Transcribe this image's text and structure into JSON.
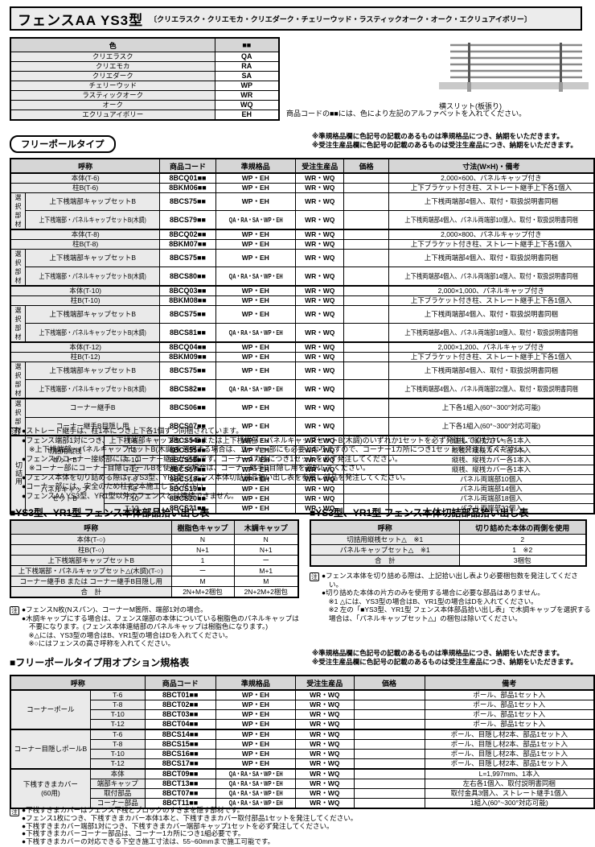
{
  "note_mark": "注",
  "colors": {
    "border": "#000000",
    "header_bg": "#d6d6d6",
    "label_bg": "#eaeaea",
    "title_bg": "#ececec",
    "ground": "#c9c9c9"
  },
  "page": {
    "title": "フェンスAA YS3型",
    "subtitle": "〔クリエラスク・クリエモカ・クリエダーク・チェリーウッド・ラスティックオーク・オーク・エクリュアイボリー〕",
    "code_note": "商品コードの■■には、色により左記のアルファベットを入れてください。",
    "diagram_caption": "横スリット(板張り)"
  },
  "color_table": {
    "header": [
      "色",
      "■■"
    ],
    "rows": [
      [
        "クリエラスク",
        "QA"
      ],
      [
        "クリエモカ",
        "RA"
      ],
      [
        "クリエダーク",
        "SA"
      ],
      [
        "チェリーウッド",
        "WP"
      ],
      [
        "ラスティックオーク",
        "WR"
      ],
      [
        "オーク",
        "WQ"
      ],
      [
        "エクリュアイボリー",
        "EH"
      ]
    ]
  },
  "notices": [
    "※準規格品欄に色記号の記載のあるものは準規格品につき、納期をいただきます。",
    "※受注生産品欄に色記号の記載のあるものは受注生産品につき、納期をいただきます。"
  ],
  "free_pole": {
    "badge": "フリーポールタイプ",
    "headers": [
      "呼称",
      "商品コード",
      "準規格品",
      "受注生産品",
      "価格",
      "寸法(W×H)・備考"
    ],
    "side_label": "選択部材",
    "cut_label": "切詰用",
    "rows": [
      {
        "k": "p",
        "top": true,
        "name": "本体(T-6)",
        "code": "8BCQ01■■",
        "semi": "WP・EH",
        "order": "WR・WQ",
        "price": "",
        "note": "2,000×600、パネルキャップ付き"
      },
      {
        "k": "p",
        "name": "柱B(T-6)",
        "code": "8BKM06■■",
        "semi": "WP・EH",
        "order": "WR・WQ",
        "price": "",
        "note": "上下ブラケット付き柱、ストレート継手上下各1個入"
      },
      {
        "k": "s",
        "first": true,
        "name": "上下桟端部キャップセットB",
        "code": "8BCS75■■",
        "semi": "WP・EH",
        "order": "WR・WQ",
        "price": "",
        "note": "上下桟両端部4個入、取付・取扱説明書同梱"
      },
      {
        "k": "s",
        "name": "上下桟端部・パネルキャップセットB(木調)",
        "code": "8BCS79■■",
        "semi": "QA・RA・SA・WP・EH",
        "order": "WR・WQ",
        "price": "",
        "note": "上下桟両端部4個入、パネル両端部10個入、取付・取扱説明書同梱"
      },
      {
        "k": "p",
        "top": true,
        "name": "本体(T-8)",
        "code": "8BCQ02■■",
        "semi": "WP・EH",
        "order": "WR・WQ",
        "price": "",
        "note": "2,000×800、パネルキャップ付き"
      },
      {
        "k": "p",
        "name": "柱B(T-8)",
        "code": "8BKM07■■",
        "semi": "WP・EH",
        "order": "WR・WQ",
        "price": "",
        "note": "上下ブラケット付き柱、ストレート継手上下各1個入"
      },
      {
        "k": "s",
        "first": true,
        "name": "上下桟端部キャップセットB",
        "code": "8BCS75■■",
        "semi": "WP・EH",
        "order": "WR・WQ",
        "price": "",
        "note": "上下桟両端部4個入、取付・取扱説明書同梱"
      },
      {
        "k": "s",
        "name": "上下桟端部・パネルキャップセットB(木調)",
        "code": "8BCS80■■",
        "semi": "QA・RA・SA・WP・EH",
        "order": "WR・WQ",
        "price": "",
        "note": "上下桟両端部4個入、パネル両端部14個入、取付・取扱説明書同梱"
      },
      {
        "k": "p",
        "top": true,
        "name": "本体(T-10)",
        "code": "8BCQ03■■",
        "semi": "WP・EH",
        "order": "WR・WQ",
        "price": "",
        "note": "2,000×1,000、パネルキャップ付き"
      },
      {
        "k": "p",
        "name": "柱B(T-10)",
        "code": "8BKM08■■",
        "semi": "WP・EH",
        "order": "WR・WQ",
        "price": "",
        "note": "上下ブラケット付き柱、ストレート継手上下各1個入"
      },
      {
        "k": "s",
        "first": true,
        "name": "上下桟端部キャップセットB",
        "code": "8BCS75■■",
        "semi": "WP・EH",
        "order": "WR・WQ",
        "price": "",
        "note": "上下桟両端部4個入、取付・取扱説明書同梱"
      },
      {
        "k": "s",
        "name": "上下桟端部・パネルキャップセットB(木調)",
        "code": "8BCS81■■",
        "semi": "QA・RA・SA・WP・EH",
        "order": "WR・WQ",
        "price": "",
        "note": "上下桟両端部4個入、パネル両端部18個入、取付・取扱説明書同梱"
      },
      {
        "k": "p",
        "top": true,
        "name": "本体(T-12)",
        "code": "8BCQ04■■",
        "semi": "WP・EH",
        "order": "WR・WQ",
        "price": "",
        "note": "2,000×1,200、パネルキャップ付き"
      },
      {
        "k": "p",
        "name": "柱B(T-12)",
        "code": "8BKM09■■",
        "semi": "WP・EH",
        "order": "WR・WQ",
        "price": "",
        "note": "上下ブラケット付き柱、ストレート継手上下各1個入"
      },
      {
        "k": "s",
        "first": true,
        "name": "上下桟端部キャップセットB",
        "code": "8BCS75■■",
        "semi": "WP・EH",
        "order": "WR・WQ",
        "price": "",
        "note": "上下桟両端部4個入、取付・取扱説明書同梱"
      },
      {
        "k": "s",
        "name": "上下桟端部・パネルキャップセットB(木調)",
        "code": "8BCS82■■",
        "semi": "QA・RA・SA・WP・EH",
        "order": "WR・WQ",
        "price": "",
        "note": "上下桟両端部4個入、パネル両端部22個入、取付・取扱説明書同梱"
      },
      {
        "k": "s",
        "first": true,
        "top": true,
        "name": "コーナー継手B",
        "code": "8BCS06■■",
        "semi": "WP・EH",
        "order": "WR・WQ",
        "price": "",
        "note": "上下各1組入(60°~300°対応可能)"
      },
      {
        "k": "s",
        "name": "コーナー継手B目隠し用",
        "code": "8BCS07■■",
        "semi": "WP・EH",
        "order": "WR・WQ",
        "price": "",
        "note": "上下各1組入(60°~300°対応可能)"
      },
      {
        "k": "c",
        "top": true,
        "cutFirst": true,
        "groupFirst": true,
        "group": "切詰用縦桟セットB",
        "size": "T-6",
        "code": "8BCS54■■",
        "semi": "WP・EH",
        "order": "WR・WQ",
        "price": "",
        "note": "縦桟、縦桟カバー各1本入"
      },
      {
        "k": "c",
        "size": "T-8",
        "code": "8BCS55■■",
        "semi": "WP・EH",
        "order": "WR・WQ",
        "price": "",
        "note": "縦桟、縦桟カバー各1本入"
      },
      {
        "k": "c",
        "size": "T-10",
        "code": "8BCS56■■",
        "semi": "WP・EH",
        "order": "WR・WQ",
        "price": "",
        "note": "縦桟、縦桟カバー各1本入"
      },
      {
        "k": "c",
        "size": "T-12",
        "code": "8BCS57■■",
        "semi": "WP・EH",
        "order": "WR・WQ",
        "price": "",
        "note": "縦桟、縦桟カバー各1本入"
      },
      {
        "k": "c",
        "groupFirst": true,
        "group": "パネルキャップセットB",
        "size": "T-6",
        "code": "8BCS18■■",
        "semi": "WP・EH",
        "order": "WR・WQ",
        "price": "",
        "note": "パネル両端部10個入"
      },
      {
        "k": "c",
        "size": "T-8",
        "code": "8BCS19■■",
        "semi": "WP・EH",
        "order": "WR・WQ",
        "price": "",
        "note": "パネル両端部14個入"
      },
      {
        "k": "c",
        "size": "T-10",
        "code": "8BCS20■■",
        "semi": "WP・EH",
        "order": "WR・WQ",
        "price": "",
        "note": "パネル両端部18個入"
      },
      {
        "k": "c",
        "size": "T-12",
        "code": "8BCS21■■",
        "semi": "WP・EH",
        "order": "WR・WQ",
        "price": "",
        "note": "パネル両端部22個入"
      }
    ],
    "notes": [
      "●ストレート継手は、柱1本につき上下各1個ずつ同梱されています。",
      "●フェンス端部1対につき、上下桟端部キャップセットBまたは上下桟端部・パネルキャップセットB(木調)のいずれか1セットを必ず発注してください。",
      "　※上下桟端部・パネルキャップセットB(木調)を選択する場合は、コーナー部にも必要となりますので、コーナー1カ所につき1セットを発注してください。",
      "●フェンスのコーナー接続部には、コーナー継手が必要です。コーナー1カ所につき1セットを必ず発注してください。",
      "　※コーナー部にコーナー目隠しポールBを使用する場合は、コーナー継手B目隠し用を選択してください。",
      "●フェンス本体を切り詰める際は、YS3型、YR1型 フェンス本体切詰部品拾い出し表を参照し部品を発注してください。",
      "●コーナー部には、安全のため柱を2本施工してください。",
      "●フェンスAA YS3型、YR1型以外のフェンスとは連結できません。"
    ]
  },
  "parts_table": {
    "title": "■YS3型、YR1型 フェンス本体部品拾い出し表",
    "headers": [
      "呼称",
      "樹脂色キャップ",
      "木調キャップ"
    ],
    "rows": [
      [
        "本体(T-○)",
        "N",
        "N"
      ],
      [
        "柱B(T-○)",
        "N+1",
        "N+1"
      ],
      [
        "上下桟端部キャップセットB",
        "1",
        "ー"
      ],
      [
        "上下桟端部・パネルキャップセット△(木調)(T-○)",
        "ー",
        "M+1"
      ],
      [
        "コーナー継手B または コーナー継手B目隠し用",
        "M",
        "M"
      ],
      [
        "合　計",
        "2N+M+2梱包",
        "2N+2M+2梱包"
      ]
    ],
    "notes": [
      "●フェンスN枚(Nスパン)、コーナーM箇所、端部1対の場合。",
      "●木調キャップにする場合は、フェンス端部の本体についている樹脂色のパネルキャップは不要になります。(フェンス本体連結部のパネルキャップは樹脂色になります。)",
      "　※△には、YS3型の場合はB、YR1型の場合はDを入れてください。",
      "　※○にはフェンスの高さ呼称を入れてください。"
    ]
  },
  "cut_table": {
    "title": "■YS3型、YR1型 フェンス本体切詰部品拾い出し表",
    "headers": [
      "呼称",
      "切り詰めた本体の両側を使用"
    ],
    "rows": [
      [
        "切詰用縦桟セット△　※1",
        "2"
      ],
      [
        "パネルキャップセット△　※1",
        "1　※2"
      ],
      [
        "合　計",
        "3梱包"
      ]
    ],
    "notes": [
      "●フェンス本体を切り詰める際は、上記拾い出し表より必要梱包数を発注してください。",
      "●切り詰めた本体の片方のみを使用する場合に必要な部品はありません。",
      "　※1 △には、YS3型の場合はB、YR1型の場合はDを入れてください。",
      "　※2 左の「■YS3型、YR1型 フェンス本体部品拾い出し表」で木調キャップを選択する場合は、「パネルキャップセット△」の梱包は除いてください。"
    ]
  },
  "option_table": {
    "title": "■フリーポールタイプ用オプション規格表",
    "headers": [
      "呼称",
      "商品コード",
      "準規格品",
      "受注生産品",
      "価格",
      "備考"
    ],
    "groups": [
      {
        "name": "コーナーポール",
        "items": [
          {
            "size": "T-6",
            "code": "8BCT01■■",
            "semi": "WP・EH",
            "order": "WR・WQ",
            "price": "",
            "note": "ポール、部品1セット入"
          },
          {
            "size": "T-8",
            "code": "8BCT02■■",
            "semi": "WP・EH",
            "order": "WR・WQ",
            "price": "",
            "note": "ポール、部品1セット入"
          },
          {
            "size": "T-10",
            "code": "8BCT03■■",
            "semi": "WP・EH",
            "order": "WR・WQ",
            "price": "",
            "note": "ポール、部品1セット入"
          },
          {
            "size": "T-12",
            "code": "8BCT04■■",
            "semi": "WP・EH",
            "order": "WR・WQ",
            "price": "",
            "note": "ポール、部品1セット入"
          }
        ]
      },
      {
        "name": "コーナー目隠しポールB",
        "items": [
          {
            "size": "T-6",
            "code": "8BCS14■■",
            "semi": "WP・EH",
            "order": "WR・WQ",
            "price": "",
            "note": "ポール、目隠し材2本、部品1セット入"
          },
          {
            "size": "T-8",
            "code": "8BCS15■■",
            "semi": "WP・EH",
            "order": "WR・WQ",
            "price": "",
            "note": "ポール、目隠し材2本、部品1セット入"
          },
          {
            "size": "T-10",
            "code": "8BCS16■■",
            "semi": "WP・EH",
            "order": "WR・WQ",
            "price": "",
            "note": "ポール、目隠し材2本、部品1セット入"
          },
          {
            "size": "T-12",
            "code": "8BCS17■■",
            "semi": "WP・EH",
            "order": "WR・WQ",
            "price": "",
            "note": "ポール、目隠し材2本、部品1セット入"
          }
        ]
      },
      {
        "name": "下桟すきまカバー(60用)",
        "items": [
          {
            "size": "本体",
            "code": "8BCT09■■",
            "semi": "QA・RA・SA・WP・EH",
            "order": "WR・WQ",
            "price": "",
            "note": "L=1,997mm、1本入"
          },
          {
            "size": "端部キャップ",
            "code": "8BCT13■■",
            "semi": "QA・RA・SA・WP・EH",
            "order": "WR・WQ",
            "price": "",
            "note": "左右各1個入、取付説明書同梱"
          },
          {
            "size": "取付部品",
            "code": "8BCT07■■",
            "semi": "QA・RA・SA・WP・EH",
            "order": "WR・WQ",
            "price": "",
            "note": "取付金具3個入、ストレート継手1個入"
          },
          {
            "size": "コーナー部品",
            "code": "8BCT11■■",
            "semi": "QA・RA・SA・WP・EH",
            "order": "WR・WQ",
            "price": "",
            "note": "1組入(60°~300°対応可能)"
          }
        ]
      }
    ],
    "notes": [
      "●下桟すきまカバーはフェンス下桟とブロックのすきまを隠す部材です。",
      "●フェンス1枚につき、下桟すきまカバー本体1本と、下桟すきまカバー取付部品1セットを発注してください。",
      "●下桟すきまカバー端部1対につき、下桟すきまカバー端部キャップ1セットを必ず発注してください。",
      "●下桟すきまカバーコーナー部品は、コーナー1カ所につき1組必要です。",
      "●下桟すきまカバーの対応できる下空き施工寸法は、55~60mmまで施工可能です。"
    ]
  }
}
